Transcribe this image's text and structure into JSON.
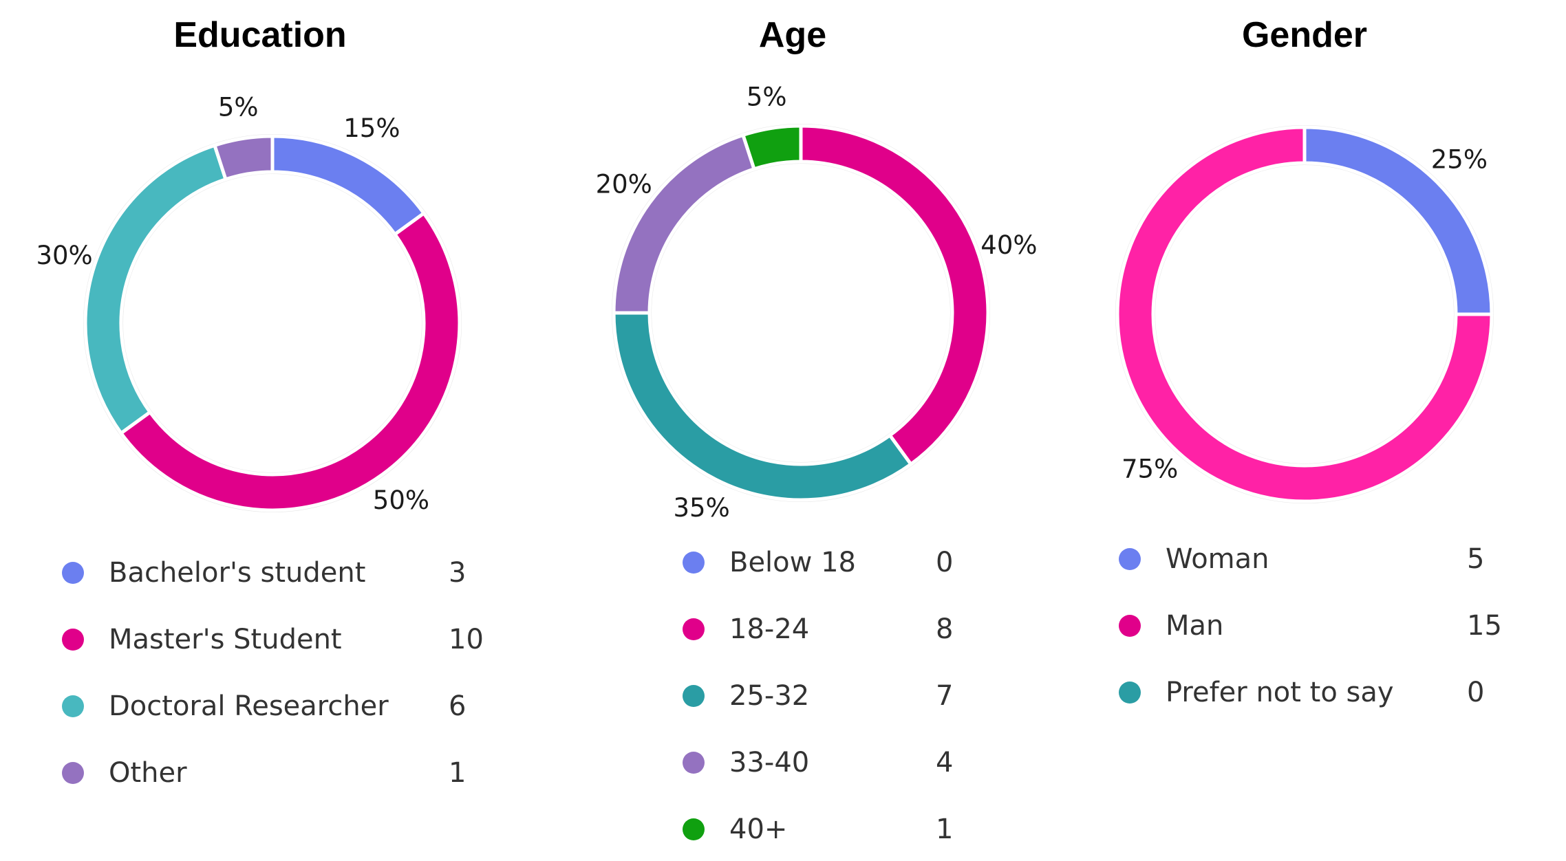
{
  "chart_data": [
    {
      "type": "pie",
      "donut": true,
      "title": "Education",
      "categories": [
        "Bachelor's student",
        "Master's Student",
        "Doctoral Researcher",
        "Other"
      ],
      "values": [
        3,
        10,
        6,
        1
      ],
      "percent_labels": [
        "15%",
        "50%",
        "30%",
        "5%"
      ],
      "colors": [
        "#6b7ff0",
        "#e0008a",
        "#48b8bf",
        "#9472c0"
      ],
      "legend": "bottom"
    },
    {
      "type": "pie",
      "donut": true,
      "title": "Age",
      "categories": [
        "Below 18",
        "18-24",
        "25-32",
        "33-40",
        "40+"
      ],
      "values": [
        0,
        8,
        7,
        4,
        1
      ],
      "percent_labels": [
        "",
        "40%",
        "35%",
        "20%",
        "5%"
      ],
      "colors": [
        "#6b7ff0",
        "#e0008a",
        "#2a9da4",
        "#9472c0",
        "#10a010"
      ],
      "legend": "bottom"
    },
    {
      "type": "pie",
      "donut": true,
      "title": "Gender",
      "categories": [
        "Woman",
        "Man",
        "Prefer not to say"
      ],
      "values": [
        5,
        15,
        0
      ],
      "percent_labels": [
        "25%",
        "75%",
        ""
      ],
      "colors": [
        "#6b7ff0",
        "#ff22a6",
        "#2a9da4"
      ],
      "legend_colors": [
        "#6b7ff0",
        "#e0008a",
        "#2a9da4"
      ],
      "legend": "bottom"
    }
  ]
}
